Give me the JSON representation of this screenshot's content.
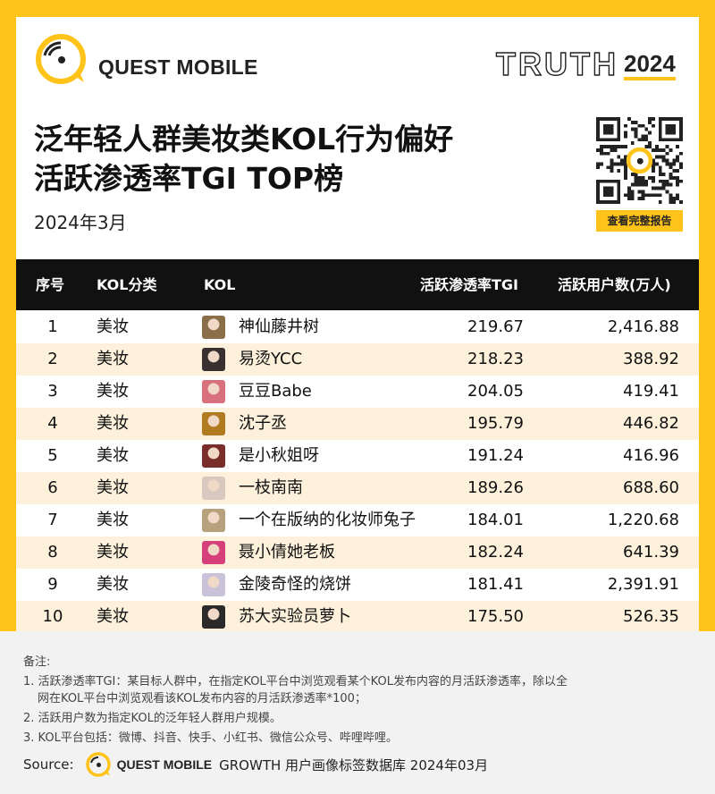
{
  "brand": "QUEST MOBILE",
  "badge": {
    "word": "TRUTH",
    "year": "2024"
  },
  "title_line1": "泛年轻人群美妆类KOL行为偏好",
  "title_line2": "活跃渗透率TGI TOP榜",
  "date": "2024年3月",
  "report_button": "查看完整报告",
  "colors": {
    "accent": "#ffc31a",
    "header_bg": "#111111",
    "row_alt": "#fdf1dc"
  },
  "chart_data": {
    "type": "table",
    "columns": [
      "序号",
      "KOL分类",
      "KOL",
      "活跃渗透率TGI",
      "活跃用户数(万人)"
    ],
    "rows": [
      {
        "rank": "1",
        "category": "美妆",
        "kol": "神仙藤井树",
        "tgi": "219.67",
        "users": "2,416.88"
      },
      {
        "rank": "2",
        "category": "美妆",
        "kol": "易烫YCC",
        "tgi": "218.23",
        "users": "388.92"
      },
      {
        "rank": "3",
        "category": "美妆",
        "kol": "豆豆Babe",
        "tgi": "204.05",
        "users": "419.41"
      },
      {
        "rank": "4",
        "category": "美妆",
        "kol": "沈子丞",
        "tgi": "195.79",
        "users": "446.82"
      },
      {
        "rank": "5",
        "category": "美妆",
        "kol": "是小秋姐呀",
        "tgi": "191.24",
        "users": "416.96"
      },
      {
        "rank": "6",
        "category": "美妆",
        "kol": "一枝南南",
        "tgi": "189.26",
        "users": "688.60"
      },
      {
        "rank": "7",
        "category": "美妆",
        "kol": "一个在版纳的化妆师兔子",
        "tgi": "184.01",
        "users": "1,220.68"
      },
      {
        "rank": "8",
        "category": "美妆",
        "kol": "聂小倩她老板",
        "tgi": "182.24",
        "users": "641.39"
      },
      {
        "rank": "9",
        "category": "美妆",
        "kol": "金陵奇怪的烧饼",
        "tgi": "181.41",
        "users": "2,391.91"
      },
      {
        "rank": "10",
        "category": "美妆",
        "kol": "苏大实验员萝卜",
        "tgi": "175.50",
        "users": "526.35"
      }
    ]
  },
  "avatar_colors": [
    "#8a6e4a",
    "#3a3030",
    "#d8707e",
    "#b07a1e",
    "#7a2e2a",
    "#d9c8bf",
    "#b8a27e",
    "#d6407a",
    "#c9c2d8",
    "#2a2a2a"
  ],
  "notes": {
    "heading": "备注:",
    "line1": "1. 活跃渗透率TGI：某目标人群中，在指定KOL平台中浏览观看某个KOL发布内容的月活跃渗透率，除以全",
    "line1b": "网在KOL平台中浏览观看该KOL发布内容的月活跃渗透率*100；",
    "line2": "2. 活跃用户数为指定KOL的泛年轻人群用户规模。",
    "line3": "3. KOL平台包括：微博、抖音、快手、小红书、微信公众号、哔哩哔哩。"
  },
  "source": {
    "label": "Source:",
    "brand": "QUEST MOBILE",
    "text": "GROWTH 用户画像标签数据库 2024年03月"
  }
}
